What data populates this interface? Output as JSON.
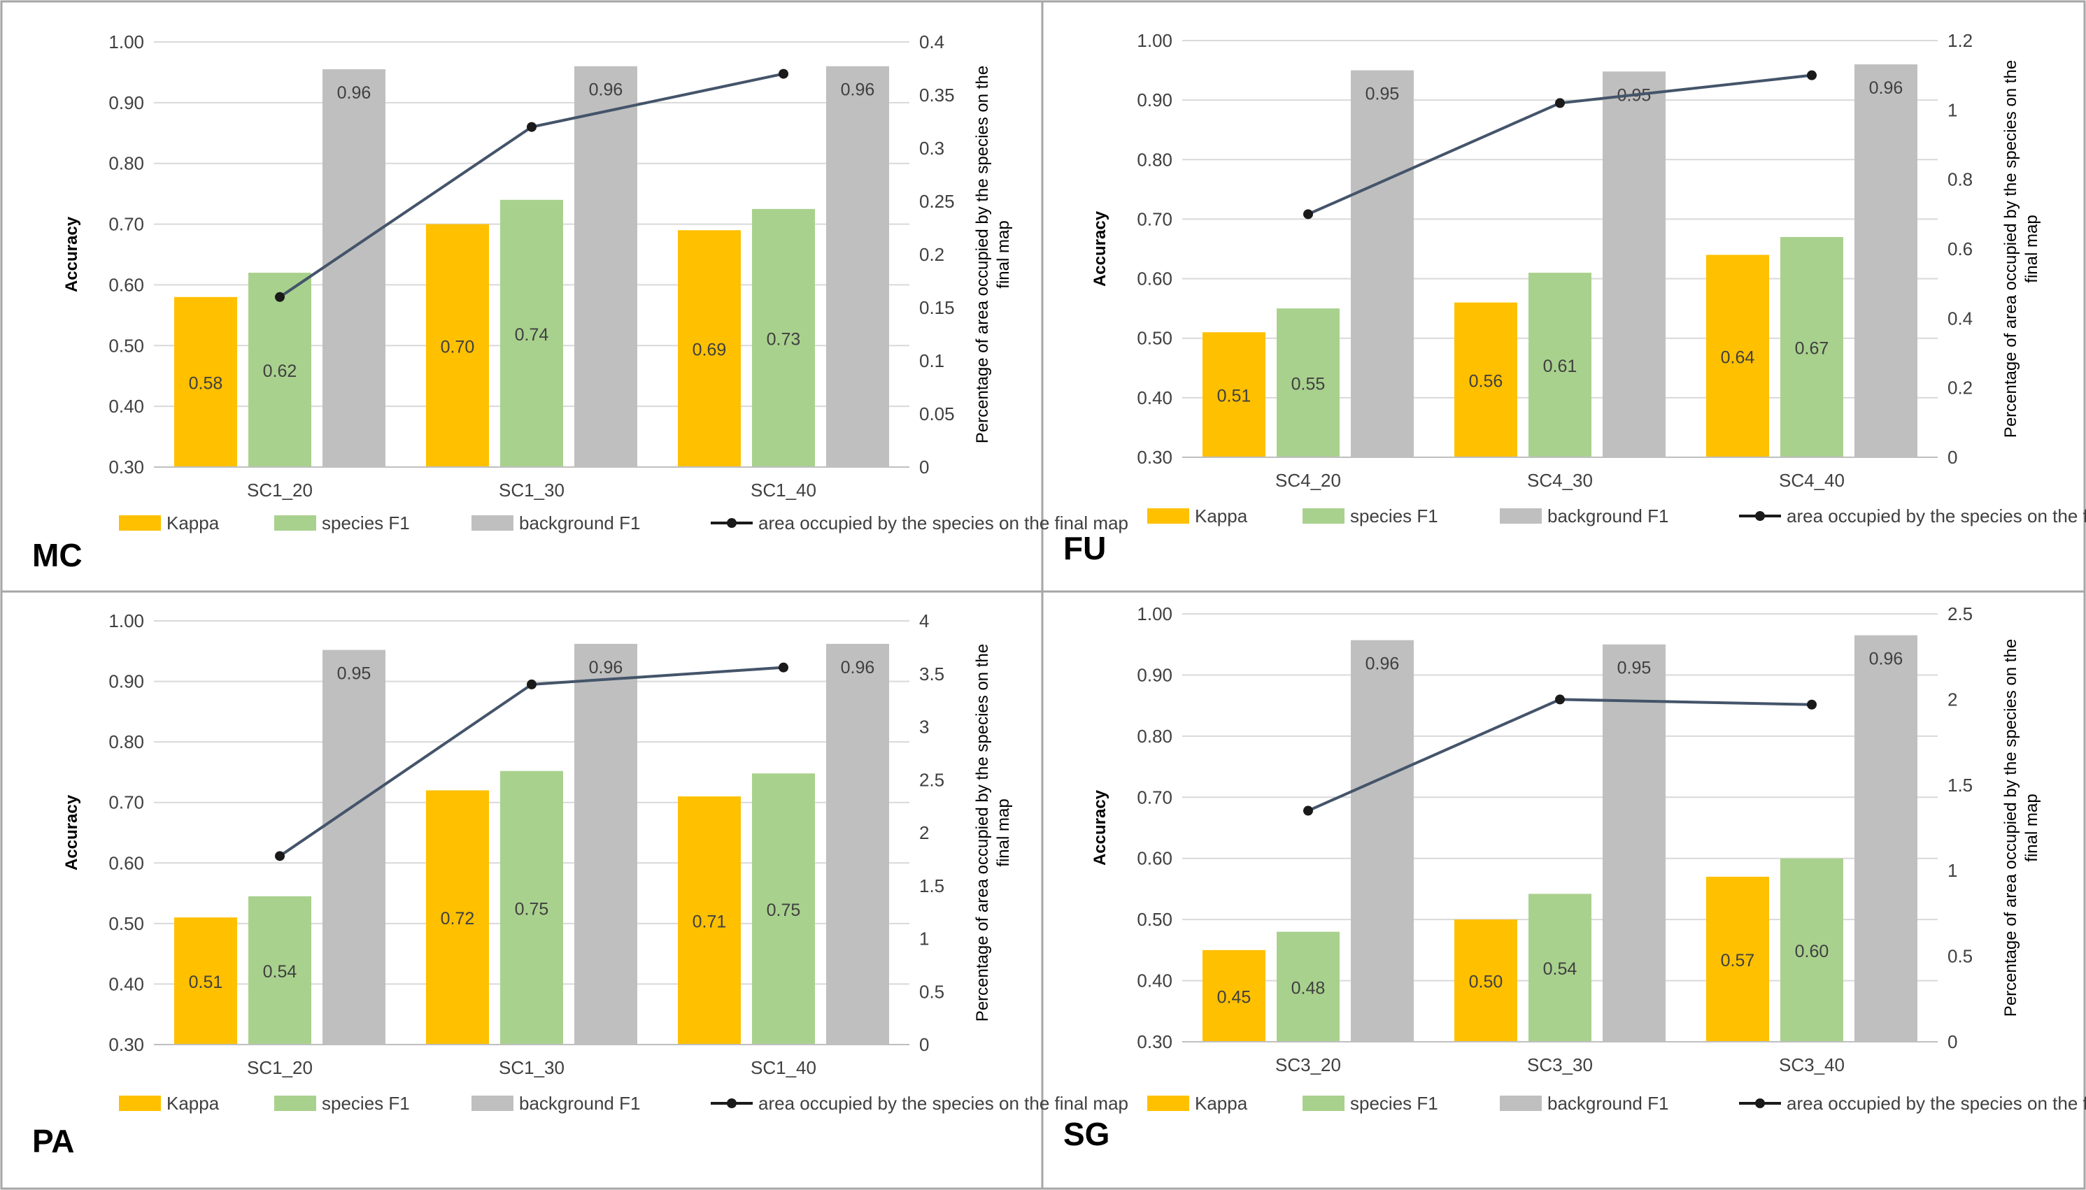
{
  "figure": {
    "legend": {
      "kappa": "Kappa",
      "species_f1": "species F1",
      "background_f1": "background F1",
      "area": "area occupied by the species on the final map"
    },
    "colors": {
      "kappa": "#FFC000",
      "species_f1": "#A9D18E",
      "background_f1": "#BFBFBF",
      "line": "#44546A",
      "grid": "#D9D9D9",
      "border": "#A6A6A6"
    }
  },
  "chart_data": [
    {
      "id": "MC",
      "panel_label": "MC",
      "type": "bar",
      "categories": [
        "SC1_20",
        "SC1_30",
        "SC1_40"
      ],
      "series": [
        {
          "name": "Kappa",
          "values": [
            0.58,
            0.7,
            0.69
          ],
          "labels": [
            "0.58",
            "0.70",
            "0.69"
          ]
        },
        {
          "name": "species F1",
          "values": [
            0.62,
            0.74,
            0.725
          ],
          "labels": [
            "0.62",
            "0.74",
            "0.73"
          ]
        },
        {
          "name": "background F1",
          "values": [
            0.955,
            0.96,
            0.96
          ],
          "labels": [
            "0.96",
            "0.96",
            "0.96"
          ]
        }
      ],
      "line_series": {
        "name": "area occupied by the species on the final map",
        "values": [
          0.16,
          0.32,
          0.37
        ]
      },
      "ylabel": "Accuracy",
      "ylim": [
        0.3,
        1.0
      ],
      "yticks": [
        "0.30",
        "0.40",
        "0.50",
        "0.60",
        "0.70",
        "0.80",
        "0.90",
        "1.00"
      ],
      "y2label_lines": [
        "Percentage of area occupied by the species on the",
        "final map"
      ],
      "y2lim": [
        0,
        0.4
      ],
      "y2ticks": [
        "0",
        "0.05",
        "0.1",
        "0.15",
        "0.2",
        "0.25",
        "0.3",
        "0.35",
        "0.4"
      ]
    },
    {
      "id": "FU",
      "panel_label": "FU",
      "type": "bar",
      "categories": [
        "SC4_20",
        "SC4_30",
        "SC4_40"
      ],
      "series": [
        {
          "name": "Kappa",
          "values": [
            0.51,
            0.56,
            0.64
          ],
          "labels": [
            "0.51",
            "0.56",
            "0.64"
          ]
        },
        {
          "name": "species F1",
          "values": [
            0.55,
            0.61,
            0.67
          ],
          "labels": [
            "0.55",
            "0.61",
            "0.67"
          ]
        },
        {
          "name": "background F1",
          "values": [
            0.95,
            0.948,
            0.96
          ],
          "labels": [
            "0.95",
            "0.95",
            "0.96"
          ]
        }
      ],
      "line_series": {
        "name": "area occupied by the species on the final map",
        "values": [
          0.7,
          1.02,
          1.1
        ]
      },
      "ylabel": "Accuracy",
      "ylim": [
        0.3,
        1.0
      ],
      "yticks": [
        "0.30",
        "0.40",
        "0.50",
        "0.60",
        "0.70",
        "0.80",
        "0.90",
        "1.00"
      ],
      "y2label_lines": [
        "Percentage of area occupied by the species on the",
        "final map"
      ],
      "y2lim": [
        0,
        1.2
      ],
      "y2ticks": [
        "0",
        "0.2",
        "0.4",
        "0.6",
        "0.8",
        "1",
        "1.2"
      ]
    },
    {
      "id": "PA",
      "panel_label": "PA",
      "type": "bar",
      "categories": [
        "SC1_20",
        "SC1_30",
        "SC1_40"
      ],
      "series": [
        {
          "name": "Kappa",
          "values": [
            0.51,
            0.72,
            0.71
          ],
          "labels": [
            "0.51",
            "0.72",
            "0.71"
          ]
        },
        {
          "name": "species F1",
          "values": [
            0.545,
            0.752,
            0.748
          ],
          "labels": [
            "0.54",
            "0.75",
            "0.75"
          ]
        },
        {
          "name": "background F1",
          "values": [
            0.952,
            0.962,
            0.962
          ],
          "labels": [
            "0.95",
            "0.96",
            "0.96"
          ]
        }
      ],
      "line_series": {
        "name": "area occupied by the species on the final map",
        "values": [
          1.78,
          3.4,
          3.56
        ]
      },
      "ylabel": "Accuracy",
      "ylim": [
        0.3,
        1.0
      ],
      "yticks": [
        "0.30",
        "0.40",
        "0.50",
        "0.60",
        "0.70",
        "0.80",
        "0.90",
        "1.00"
      ],
      "y2label_lines": [
        "Percentage of area occupied by the species on the",
        "final map"
      ],
      "y2lim": [
        0,
        4
      ],
      "y2ticks": [
        "0",
        "0.5",
        "1",
        "1.5",
        "2",
        "2.5",
        "3",
        "3.5",
        "4"
      ]
    },
    {
      "id": "SG",
      "panel_label": "SG",
      "type": "bar",
      "categories": [
        "SC3_20",
        "SC3_30",
        "SC3_40"
      ],
      "series": [
        {
          "name": "Kappa",
          "values": [
            0.45,
            0.5,
            0.57
          ],
          "labels": [
            "0.45",
            "0.50",
            "0.57"
          ]
        },
        {
          "name": "species F1",
          "values": [
            0.48,
            0.542,
            0.6
          ],
          "labels": [
            "0.48",
            "0.54",
            "0.60"
          ]
        },
        {
          "name": "background F1",
          "values": [
            0.957,
            0.95,
            0.965
          ],
          "labels": [
            "0.96",
            "0.95",
            "0.96"
          ]
        }
      ],
      "line_series": {
        "name": "area occupied by the species on the final map",
        "values": [
          1.35,
          2.0,
          1.97
        ]
      },
      "ylabel": "Accuracy",
      "ylim": [
        0.3,
        1.0
      ],
      "yticks": [
        "0.30",
        "0.40",
        "0.50",
        "0.60",
        "0.70",
        "0.80",
        "0.90",
        "1.00"
      ],
      "y2label_lines": [
        "Percentage of area occupied by the species on the",
        "final map"
      ],
      "y2lim": [
        0,
        2.5
      ],
      "y2ticks": [
        "0",
        "0.5",
        "1",
        "1.5",
        "2",
        "2.5"
      ]
    }
  ]
}
